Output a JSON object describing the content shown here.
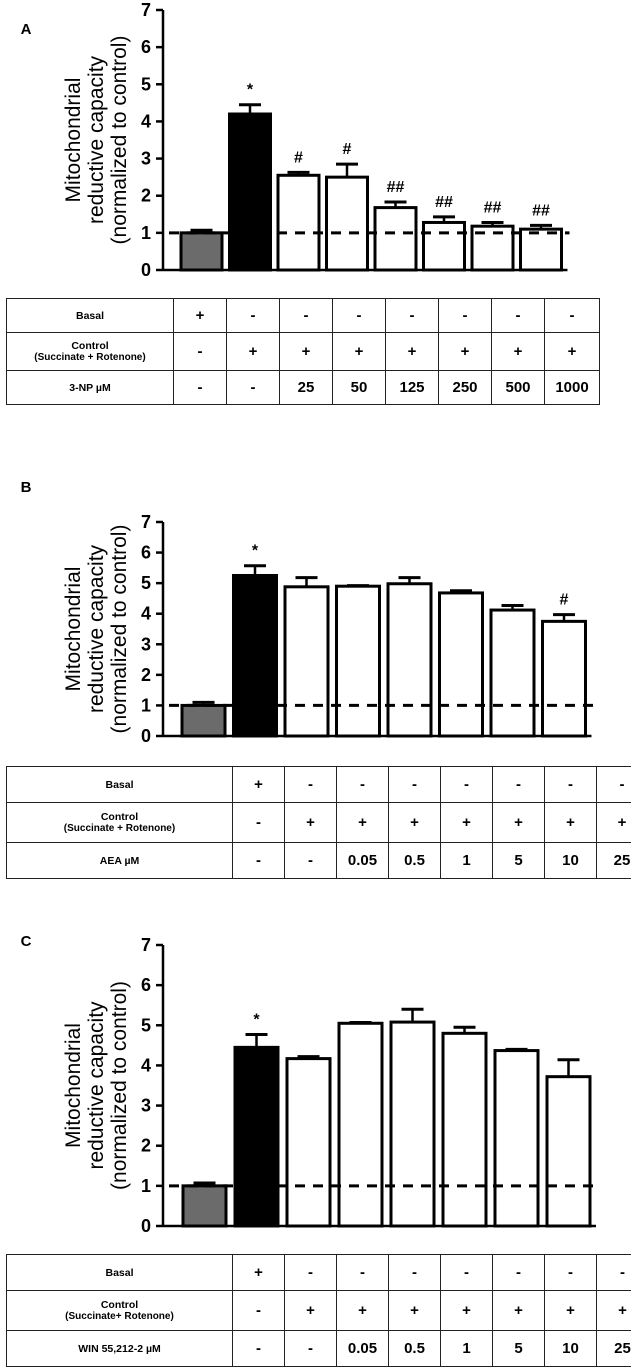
{
  "panels": [
    {
      "letter": "A",
      "ylabel_lines": [
        "Mitochondrial",
        "reductive capacity",
        "(normalized to control)"
      ],
      "rows": [
        {
          "label": [
            "Basal"
          ],
          "cells": [
            "+",
            "-",
            "-",
            "-",
            "-",
            "-",
            "-",
            "-"
          ]
        },
        {
          "label": [
            "Control",
            "(Succinate + Rotenone)"
          ],
          "cells": [
            "-",
            "+",
            "+",
            "+",
            "+",
            "+",
            "+",
            "+"
          ]
        },
        {
          "label": [
            "3-NP µM"
          ],
          "cells": [
            "-",
            "-",
            "25",
            "50",
            "125",
            "250",
            "500",
            "1000"
          ]
        }
      ]
    },
    {
      "letter": "B",
      "ylabel_lines": [
        "Mitochondrial",
        "reductive capacity",
        "(normalized to control)"
      ],
      "rows": [
        {
          "label": [
            "Basal"
          ],
          "cells": [
            "+",
            "-",
            "-",
            "-",
            "-",
            "-",
            "-",
            "-"
          ]
        },
        {
          "label": [
            "Control",
            "(Succinate + Rotenone)"
          ],
          "cells": [
            "-",
            "+",
            "+",
            "+",
            "+",
            "+",
            "+",
            "+"
          ]
        },
        {
          "label": [
            "AEA µM"
          ],
          "cells": [
            "-",
            "-",
            "0.05",
            "0.5",
            "1",
            "5",
            "10",
            "25"
          ]
        }
      ]
    },
    {
      "letter": "C",
      "ylabel_lines": [
        "Mitochondrial",
        "reductive capacity",
        "(normalized to control)"
      ],
      "rows": [
        {
          "label": [
            "Basal"
          ],
          "cells": [
            "+",
            "-",
            "-",
            "-",
            "-",
            "-",
            "-",
            "-"
          ]
        },
        {
          "label": [
            "Control",
            "(Succinate+ Rotenone)"
          ],
          "cells": [
            "-",
            "+",
            "+",
            "+",
            "+",
            "+",
            "+",
            "+"
          ]
        },
        {
          "label": [
            "WIN 55,212-2 µM"
          ],
          "cells": [
            "-",
            "-",
            "0.05",
            "0.5",
            "1",
            "5",
            "10",
            "25"
          ]
        }
      ]
    }
  ],
  "chart_data": [
    {
      "type": "bar",
      "panel": "A",
      "ylabel": "Mitochondrial reductive capacity (normalized to control)",
      "ylim": [
        0,
        7
      ],
      "yticks": [
        0,
        1,
        2,
        3,
        4,
        5,
        6,
        7
      ],
      "reference_line": {
        "y": 1,
        "style": "dashed"
      },
      "grid": false,
      "values": [
        1.0,
        4.2,
        2.55,
        2.5,
        1.68,
        1.28,
        1.18,
        1.1
      ],
      "errors": [
        0.07,
        0.25,
        0.08,
        0.35,
        0.15,
        0.15,
        0.1,
        0.1
      ],
      "bar_colors": [
        "#6b6b6b",
        "#000000",
        "#ffffff",
        "#ffffff",
        "#ffffff",
        "#ffffff",
        "#ffffff",
        "#ffffff"
      ],
      "annotations": [
        "",
        "*",
        "#",
        "#",
        "##",
        "##",
        "##",
        "##"
      ]
    },
    {
      "type": "bar",
      "panel": "B",
      "ylabel": "Mitochondrial reductive capacity (normalized to control)",
      "ylim": [
        0,
        7
      ],
      "yticks": [
        0,
        1,
        2,
        3,
        4,
        5,
        6,
        7
      ],
      "reference_line": {
        "y": 1,
        "style": "dashed"
      },
      "grid": false,
      "values": [
        1.0,
        5.25,
        4.88,
        4.9,
        4.98,
        4.68,
        4.12,
        3.75
      ],
      "errors": [
        0.1,
        0.32,
        0.3,
        0.02,
        0.2,
        0.07,
        0.15,
        0.22
      ],
      "bar_colors": [
        "#6b6b6b",
        "#000000",
        "#ffffff",
        "#ffffff",
        "#ffffff",
        "#ffffff",
        "#ffffff",
        "#ffffff"
      ],
      "annotations": [
        "",
        "*",
        "",
        "",
        "",
        "",
        "",
        "#"
      ]
    },
    {
      "type": "bar",
      "panel": "C",
      "ylabel": "Mitochondrial reductive capacity (normalized to control)",
      "ylim": [
        0,
        7
      ],
      "yticks": [
        0,
        1,
        2,
        3,
        4,
        5,
        6,
        7
      ],
      "reference_line": {
        "y": 1,
        "style": "dashed"
      },
      "grid": false,
      "values": [
        1.0,
        4.45,
        4.17,
        5.05,
        5.08,
        4.8,
        4.37,
        3.72
      ],
      "errors": [
        0.07,
        0.32,
        0.05,
        0.02,
        0.32,
        0.15,
        0.03,
        0.42
      ],
      "bar_colors": [
        "#6b6b6b",
        "#000000",
        "#ffffff",
        "#ffffff",
        "#ffffff",
        "#ffffff",
        "#ffffff",
        "#ffffff"
      ],
      "annotations": [
        "",
        "*",
        "",
        "",
        "",
        "",
        "",
        ""
      ]
    }
  ]
}
